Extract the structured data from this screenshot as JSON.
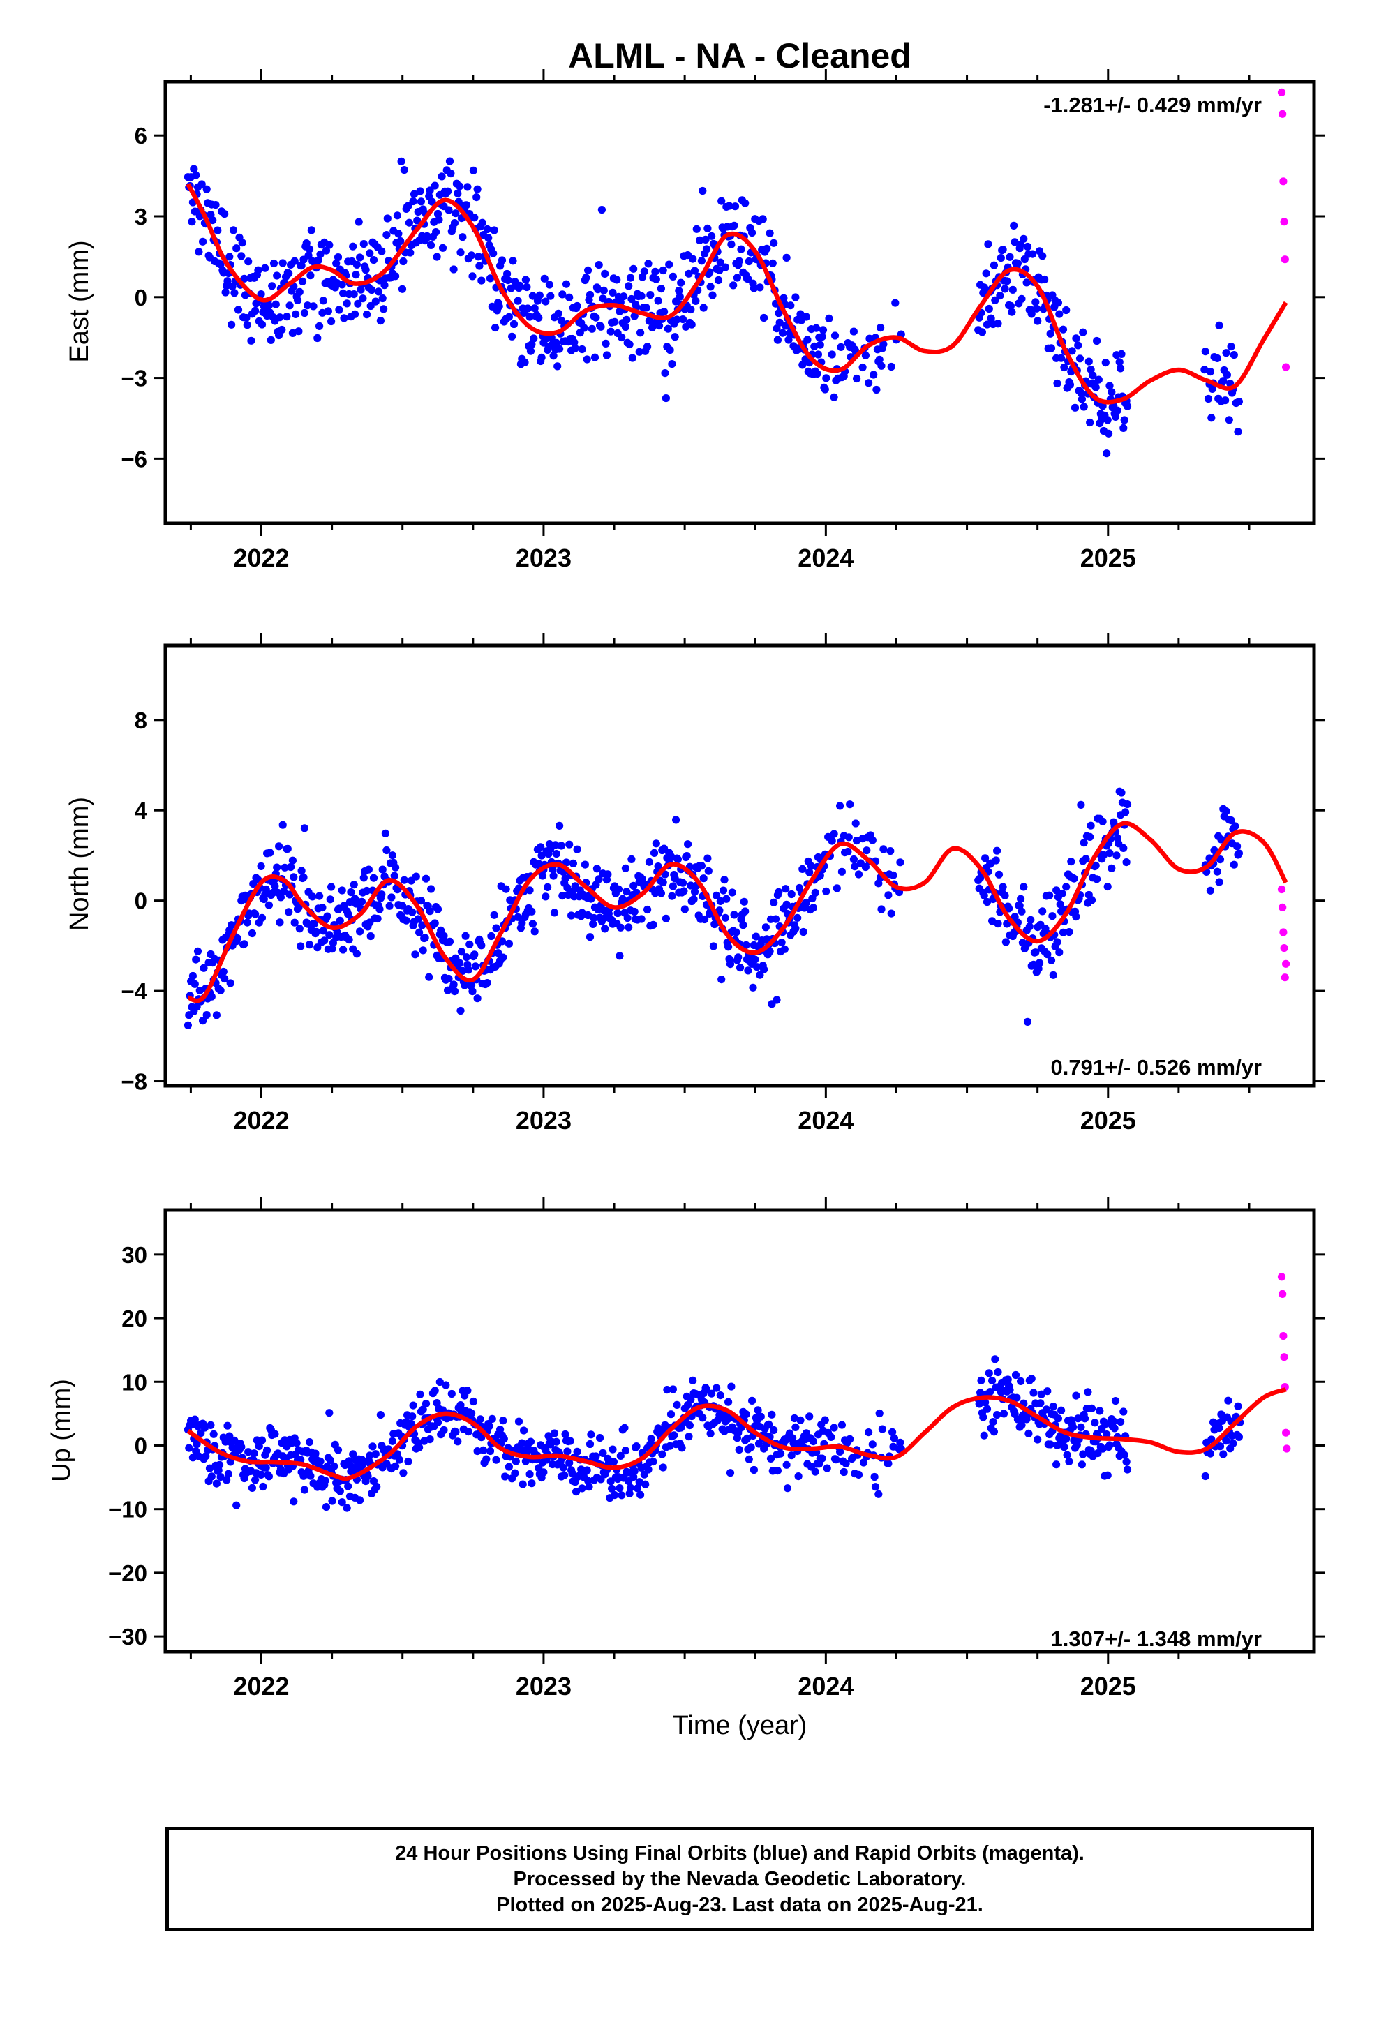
{
  "title": "ALML  - NA - Cleaned",
  "x_axis_label": "Time (year)",
  "footer": {
    "line1": "24 Hour Positions Using Final Orbits (blue) and Rapid Orbits (magenta).",
    "line2": "Processed by the Nevada Geodetic Laboratory.",
    "line3": "Plotted on 2025-Aug-23. Last data on 2025-Aug-21."
  },
  "colors": {
    "final": "#0000ff",
    "rapid": "#ff00ff",
    "model": "#ff0000",
    "frame": "#000000"
  },
  "chart_data": [
    {
      "type": "scatter",
      "panel": "east",
      "ylabel": "East (mm)",
      "rate_label": "-1.281+/- 0.429 mm/yr",
      "rate_position": "top-right",
      "xlim": [
        2021.66,
        2025.73
      ],
      "ylim": [
        -8.4,
        8.0
      ],
      "x_ticks": [
        2022,
        2023,
        2024,
        2025
      ],
      "y_ticks": [
        -6,
        -3,
        0,
        3,
        6
      ],
      "rapid_x": [
        2025.615,
        2025.618,
        2025.621,
        2025.624,
        2025.627,
        2025.63
      ],
      "rapid_y": [
        7.6,
        6.8,
        4.3,
        2.8,
        1.4,
        -2.6
      ],
      "model": {
        "x": [
          2021.74,
          2021.8,
          2021.88,
          2022.0,
          2022.1,
          2022.18,
          2022.25,
          2022.33,
          2022.43,
          2022.55,
          2022.65,
          2022.75,
          2022.85,
          2022.95,
          2023.05,
          2023.15,
          2023.25,
          2023.35,
          2023.45,
          2023.55,
          2023.65,
          2023.75,
          2023.85,
          2023.95,
          2024.05,
          2024.15,
          2024.25,
          2024.35,
          2024.45,
          2024.55,
          2024.65,
          2024.75,
          2024.85,
          2024.95,
          2025.05,
          2025.15,
          2025.25,
          2025.35,
          2025.45,
          2025.55,
          2025.63
        ],
        "y": [
          4.2,
          3.0,
          1.2,
          -0.1,
          0.5,
          1.1,
          1.0,
          0.5,
          0.9,
          2.5,
          3.6,
          2.6,
          0.3,
          -1.1,
          -1.3,
          -0.5,
          -0.3,
          -0.6,
          -0.7,
          0.6,
          2.3,
          1.7,
          -0.5,
          -2.3,
          -2.7,
          -1.8,
          -1.5,
          -2.0,
          -1.8,
          -0.3,
          1.0,
          0.4,
          -2.0,
          -3.7,
          -3.8,
          -3.1,
          -2.7,
          -3.1,
          -3.3,
          -1.6,
          -0.2
        ]
      },
      "final_series_seed": 11,
      "noise_mm": 1.5
    },
    {
      "type": "scatter",
      "panel": "north",
      "ylabel": "North (mm)",
      "rate_label": "0.791+/- 0.526 mm/yr",
      "rate_position": "bottom-right",
      "xlim": [
        2021.66,
        2025.73
      ],
      "ylim": [
        -8.2,
        11.3
      ],
      "x_ticks": [
        2022,
        2023,
        2024,
        2025
      ],
      "y_ticks": [
        -8,
        -4,
        0,
        4,
        8
      ],
      "rapid_x": [
        2025.615,
        2025.618,
        2025.621,
        2025.624,
        2025.627,
        2025.63
      ],
      "rapid_y": [
        0.5,
        -0.3,
        -1.4,
        -2.1,
        -3.4,
        -2.8
      ],
      "model": {
        "x": [
          2021.74,
          2021.8,
          2021.9,
          2022.0,
          2022.08,
          2022.15,
          2022.25,
          2022.35,
          2022.45,
          2022.55,
          2022.65,
          2022.75,
          2022.85,
          2022.95,
          2023.05,
          2023.15,
          2023.25,
          2023.35,
          2023.45,
          2023.55,
          2023.65,
          2023.75,
          2023.85,
          2023.95,
          2024.05,
          2024.15,
          2024.25,
          2024.35,
          2024.45,
          2024.55,
          2024.65,
          2024.75,
          2024.85,
          2024.95,
          2025.05,
          2025.15,
          2025.25,
          2025.35,
          2025.45,
          2025.55,
          2025.63
        ],
        "y": [
          -4.3,
          -4.2,
          -1.5,
          0.8,
          0.9,
          -0.2,
          -1.2,
          -0.6,
          0.9,
          -0.2,
          -2.5,
          -3.5,
          -1.4,
          0.9,
          1.6,
          0.6,
          -0.3,
          0.3,
          1.6,
          0.8,
          -1.5,
          -2.3,
          -1.2,
          0.9,
          2.5,
          1.8,
          0.6,
          0.8,
          2.3,
          1.4,
          -0.8,
          -1.8,
          -0.6,
          1.9,
          3.4,
          2.7,
          1.4,
          1.5,
          3.0,
          2.6,
          0.8
        ]
      },
      "final_series_seed": 23,
      "noise_mm": 1.5
    },
    {
      "type": "scatter",
      "panel": "up",
      "ylabel": "Up (mm)",
      "rate_label": "1.307+/- 1.348 mm/yr",
      "rate_position": "bottom-right",
      "xlim": [
        2021.66,
        2025.73
      ],
      "ylim": [
        -32.4,
        37.0
      ],
      "x_ticks": [
        2022,
        2023,
        2024,
        2025
      ],
      "y_ticks": [
        -30,
        -20,
        -10,
        0,
        10,
        20,
        30
      ],
      "rapid_x": [
        2025.615,
        2025.618,
        2025.621,
        2025.624,
        2025.627,
        2025.63,
        2025.633
      ],
      "rapid_y": [
        26.5,
        23.8,
        17.2,
        13.9,
        9.2,
        2.0,
        -0.5
      ],
      "model": {
        "x": [
          2021.74,
          2021.85,
          2021.95,
          2022.05,
          2022.15,
          2022.25,
          2022.32,
          2022.45,
          2022.55,
          2022.65,
          2022.75,
          2022.85,
          2022.95,
          2023.05,
          2023.15,
          2023.25,
          2023.35,
          2023.45,
          2023.55,
          2023.65,
          2023.75,
          2023.85,
          2023.95,
          2024.05,
          2024.15,
          2024.25,
          2024.35,
          2024.45,
          2024.55,
          2024.65,
          2024.75,
          2024.85,
          2024.95,
          2025.05,
          2025.15,
          2025.25,
          2025.35,
          2025.45,
          2025.55,
          2025.63
        ],
        "y": [
          2.3,
          -1.0,
          -2.5,
          -2.6,
          -3.0,
          -4.6,
          -5.0,
          -1.5,
          3.0,
          5.0,
          3.5,
          -0.5,
          -1.8,
          -1.6,
          -2.5,
          -3.5,
          -2.0,
          2.5,
          6.0,
          5.5,
          2.0,
          -0.3,
          -0.5,
          -0.2,
          -1.5,
          -1.8,
          2.0,
          6.0,
          7.5,
          7.0,
          4.5,
          2.0,
          1.2,
          1.0,
          0.5,
          -1.0,
          -0.5,
          3.5,
          7.5,
          8.8
        ]
      },
      "final_series_seed": 37,
      "noise_mm": 4.2
    }
  ]
}
